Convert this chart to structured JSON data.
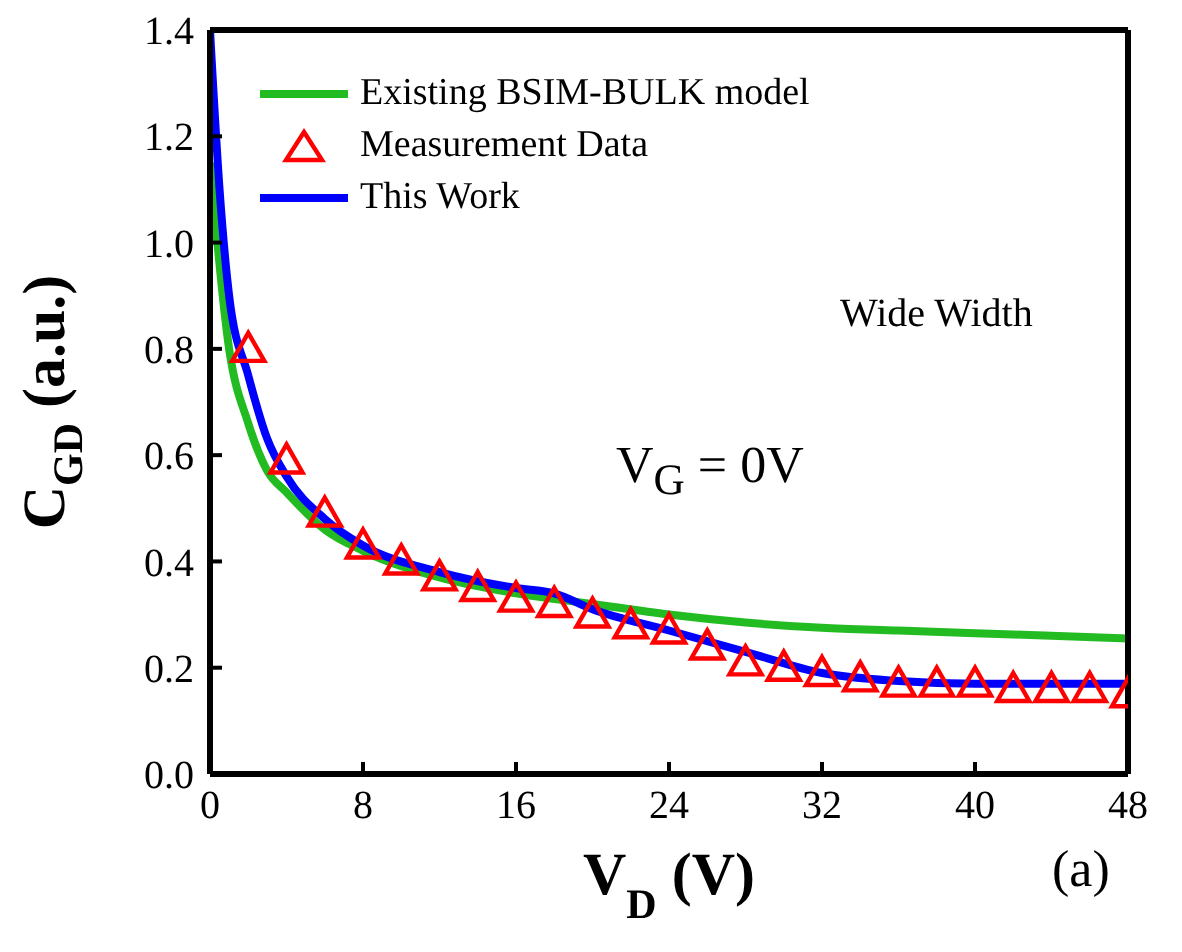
{
  "chart_data": {
    "type": "line",
    "xlabel": "V$_{D}$ (V)",
    "ylabel": "C$_{GD}$ (a.u.)",
    "xlim": [
      0,
      48
    ],
    "xticks": [
      0,
      8,
      16,
      24,
      32,
      40,
      48
    ],
    "ylim": [
      0,
      1.4
    ],
    "yticks": [
      {
        "value": 0,
        "label": "0.0"
      },
      {
        "value": 0.2,
        "label": "0.2"
      },
      {
        "value": 0.4,
        "label": "0.4"
      },
      {
        "value": 0.6,
        "label": "0.6"
      },
      {
        "value": 0.8,
        "label": "0.8"
      },
      {
        "value": 1,
        "label": "1.0"
      },
      {
        "value": 1.2,
        "label": "1.2"
      },
      {
        "value": 1.4,
        "label": "1.4"
      }
    ],
    "legend": "top left",
    "annotations": [
      "Wide Width",
      "V$_{G}$ = 0V",
      "(a)"
    ],
    "series": [
      {
        "name": "Existing BSIM-BULK model",
        "color": "#22bb22",
        "line_style": "solid",
        "marker": "none",
        "x": [
          0,
          1,
          2,
          3,
          4,
          6,
          8,
          12,
          16,
          20,
          24,
          28,
          32,
          36,
          40,
          44,
          48
        ],
        "values": [
          1.15,
          0.8,
          0.66,
          0.57,
          0.53,
          0.46,
          0.42,
          0.37,
          0.34,
          0.32,
          0.3,
          0.285,
          0.275,
          0.27,
          0.265,
          0.26,
          0.255
        ]
      },
      {
        "name": "Measurement Data",
        "type": "scatter",
        "color": "#ff0000",
        "marker": "triangle",
        "x": [
          2,
          4,
          6,
          8,
          10,
          12,
          14,
          16,
          18,
          20,
          22,
          24,
          26,
          28,
          30,
          32,
          34,
          36,
          38,
          40,
          42,
          44,
          46,
          48
        ],
        "values": [
          0.8,
          0.59,
          0.49,
          0.43,
          0.4,
          0.37,
          0.35,
          0.33,
          0.32,
          0.3,
          0.28,
          0.27,
          0.24,
          0.21,
          0.2,
          0.19,
          0.18,
          0.17,
          0.17,
          0.17,
          0.16,
          0.16,
          0.16,
          0.15
        ]
      },
      {
        "name": "This Work",
        "color": "#0000ff",
        "line_style": "solid",
        "marker": "none",
        "x": [
          0,
          0.5,
          1,
          2,
          3,
          4,
          6,
          8,
          12,
          16,
          18,
          20,
          24,
          28,
          32,
          36,
          40,
          48
        ],
        "values": [
          1.4,
          1.1,
          0.9,
          0.75,
          0.63,
          0.56,
          0.48,
          0.43,
          0.38,
          0.35,
          0.34,
          0.31,
          0.27,
          0.23,
          0.19,
          0.175,
          0.17,
          0.17
        ]
      }
    ]
  }
}
